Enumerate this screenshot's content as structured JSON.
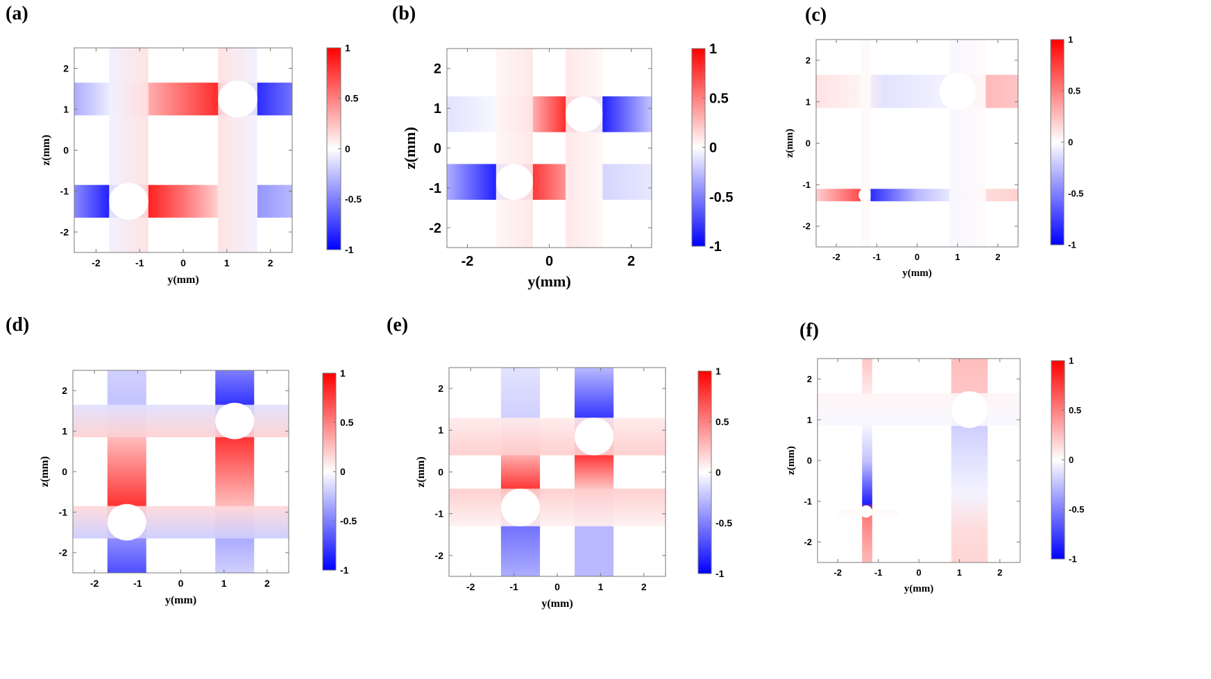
{
  "colors": {
    "pos": "#ff0000",
    "neg": "#0000ff",
    "mid": "#ffffff",
    "frame": "#777777"
  },
  "chart_data": [
    {
      "type": "heatmap",
      "panel_label": "(a)",
      "xlabel": "y(mm)",
      "ylabel": "z(mm)",
      "xlim": [
        -2.5,
        2.5
      ],
      "ylim": [
        -2.5,
        2.5
      ],
      "xticks": [
        "-2",
        "-1",
        "0",
        "1",
        "2"
      ],
      "yticks": [
        "2",
        "1",
        "0",
        "-1",
        "-2"
      ],
      "colorbar": {
        "range": [
          -1,
          1
        ],
        "ticks": [
          "1",
          "0.5",
          "0",
          "-0.5",
          "-1"
        ]
      },
      "holes": [
        {
          "y": 1.25,
          "z": 1.25,
          "r": 0.45
        },
        {
          "y": -1.25,
          "z": -1.25,
          "r": 0.45
        }
      ],
      "bands": [
        {
          "o": "h",
          "lo": 0.85,
          "hi": 1.65,
          "from": -2.5,
          "to": 2.5,
          "stops": [
            [
              -2.5,
              -0.35
            ],
            [
              -1.6,
              -0.05
            ],
            [
              -0.8,
              0.35
            ],
            [
              0.8,
              0.9
            ],
            [
              1.7,
              -0.9
            ],
            [
              2.5,
              -0.6
            ]
          ]
        },
        {
          "o": "h",
          "lo": -1.65,
          "hi": -0.85,
          "from": -2.5,
          "to": 0.8,
          "stops": [
            [
              -2.5,
              -0.5
            ],
            [
              -1.7,
              -0.95
            ],
            [
              -0.8,
              0.95
            ],
            [
              0.0,
              0.6
            ],
            [
              0.8,
              0.2
            ]
          ]
        },
        {
          "o": "h",
          "lo": -1.65,
          "hi": -0.85,
          "from": 1.7,
          "to": 2.5,
          "stops": [
            [
              1.7,
              -0.45
            ],
            [
              2.5,
              -0.3
            ]
          ]
        },
        {
          "o": "v",
          "lo": -1.7,
          "hi": -0.8,
          "from": -2.5,
          "to": 2.5,
          "stops": [
            [
              -1.7,
              -0.06
            ],
            [
              -0.8,
              0.12
            ]
          ]
        },
        {
          "o": "v",
          "lo": 0.8,
          "hi": 1.7,
          "from": -2.5,
          "to": 2.5,
          "stops": [
            [
              0.8,
              0.12
            ],
            [
              1.7,
              -0.06
            ]
          ]
        }
      ]
    },
    {
      "type": "heatmap",
      "panel_label": "(b)",
      "xlabel": "y(mm)",
      "ylabel": "z(mm)",
      "xlim": [
        -2.5,
        2.5
      ],
      "ylim": [
        -2.5,
        2.5
      ],
      "xticks": [
        "-2",
        "0",
        "2"
      ],
      "yticks": [
        "2",
        "1",
        "0",
        "-1",
        "-2"
      ],
      "colorbar": {
        "range": [
          -1,
          1
        ],
        "ticks": [
          "1",
          "0.5",
          "0",
          "-0.5",
          "-1"
        ]
      },
      "holes": [
        {
          "y": 0.85,
          "z": 0.85,
          "r": 0.45
        },
        {
          "y": -0.85,
          "z": -0.85,
          "r": 0.45
        }
      ],
      "bands": [
        {
          "o": "h",
          "lo": 0.4,
          "hi": 1.3,
          "from": -2.5,
          "to": 2.5,
          "stops": [
            [
              -2.5,
              -0.12
            ],
            [
              -1.3,
              -0.03
            ],
            [
              -0.4,
              0.35
            ],
            [
              0.4,
              0.9
            ],
            [
              1.3,
              -0.95
            ],
            [
              2.5,
              -0.25
            ]
          ]
        },
        {
          "o": "h",
          "lo": -1.3,
          "hi": -0.4,
          "from": -2.5,
          "to": 0.4,
          "stops": [
            [
              -2.5,
              -0.35
            ],
            [
              -1.3,
              -0.95
            ],
            [
              -0.4,
              0.85
            ],
            [
              0.4,
              0.45
            ]
          ]
        },
        {
          "o": "h",
          "lo": -1.3,
          "hi": -0.4,
          "from": 1.3,
          "to": 2.5,
          "stops": [
            [
              1.3,
              -0.18
            ],
            [
              2.5,
              -0.1
            ]
          ]
        },
        {
          "o": "v",
          "lo": -1.3,
          "hi": -0.4,
          "from": -2.5,
          "to": 2.5,
          "stops": [
            [
              -1.3,
              0.04
            ],
            [
              -0.4,
              0.1
            ]
          ]
        },
        {
          "o": "v",
          "lo": 0.4,
          "hi": 1.3,
          "from": -2.5,
          "to": 2.5,
          "stops": [
            [
              0.4,
              0.1
            ],
            [
              1.3,
              0.03
            ]
          ]
        }
      ]
    },
    {
      "type": "heatmap",
      "panel_label": "(c)",
      "xlabel": "y(mm)",
      "ylabel": "z(mm)",
      "xlim": [
        -2.5,
        2.5
      ],
      "ylim": [
        -2.5,
        2.5
      ],
      "xticks": [
        "-2",
        "-1",
        "0",
        "1",
        "2"
      ],
      "yticks": [
        "2",
        "1",
        "0",
        "-1",
        "-2"
      ],
      "colorbar": {
        "range": [
          -1,
          1
        ],
        "ticks": [
          "1",
          "0.5",
          "0",
          "-0.5",
          "-1"
        ]
      },
      "holes": [
        {
          "y": 1.0,
          "z": 1.25,
          "r": 0.45
        },
        {
          "y": -1.3,
          "z": -1.25,
          "r": 0.15
        }
      ],
      "bands": [
        {
          "o": "h",
          "lo": 0.85,
          "hi": 1.65,
          "from": -2.5,
          "to": 2.5,
          "stops": [
            [
              -2.5,
              0.12
            ],
            [
              -1.4,
              0.05
            ],
            [
              -0.8,
              -0.12
            ],
            [
              0.8,
              -0.05
            ],
            [
              1.6,
              0.3
            ],
            [
              2.5,
              0.25
            ]
          ]
        },
        {
          "o": "h",
          "lo": -1.4,
          "hi": -1.1,
          "from": -2.5,
          "to": 2.5,
          "stops": [
            [
              -2.5,
              0.2
            ],
            [
              -1.35,
              0.8
            ],
            [
              -1.25,
              -0.95
            ],
            [
              0.0,
              -0.3
            ],
            [
              0.8,
              -0.1
            ],
            [
              1.7,
              0.15
            ],
            [
              2.5,
              0.2
            ]
          ]
        },
        {
          "o": "v",
          "lo": -1.4,
          "hi": -1.15,
          "from": -2.5,
          "to": 2.5,
          "stops": [
            [
              -1.4,
              0.02
            ],
            [
              -1.15,
              0.02
            ]
          ]
        },
        {
          "o": "v",
          "lo": 0.8,
          "hi": 1.7,
          "from": -2.5,
          "to": 2.5,
          "stops": [
            [
              0.8,
              -0.03
            ],
            [
              1.7,
              0.02
            ]
          ]
        }
      ]
    },
    {
      "type": "heatmap",
      "panel_label": "(d)",
      "xlabel": "y(mm)",
      "ylabel": "z(mm)",
      "xlim": [
        -2.5,
        2.5
      ],
      "ylim": [
        -2.5,
        2.5
      ],
      "xticks": [
        "-2",
        "-1",
        "0",
        "1",
        "2"
      ],
      "yticks": [
        "2",
        "1",
        "0",
        "-1",
        "-2"
      ],
      "colorbar": {
        "range": [
          -1,
          1
        ],
        "ticks": [
          "1",
          "0.5",
          "0",
          "-0.5",
          "-1"
        ]
      },
      "holes": [
        {
          "y": 1.25,
          "z": 1.25,
          "r": 0.45
        },
        {
          "y": -1.25,
          "z": -1.25,
          "r": 0.45
        }
      ],
      "bands": [
        {
          "o": "v",
          "lo": -1.7,
          "hi": -0.8,
          "from": -2.5,
          "to": 2.5,
          "stops": [
            [
              -2.5,
              -0.75
            ],
            [
              -1.7,
              -0.5
            ],
            [
              -0.8,
              0.85
            ],
            [
              0.8,
              0.3
            ],
            [
              1.7,
              -0.25
            ],
            [
              2.5,
              -0.2
            ]
          ]
        },
        {
          "o": "v",
          "lo": 0.8,
          "hi": 1.7,
          "from": -2.5,
          "to": 2.5,
          "stops": [
            [
              -2.5,
              -0.2
            ],
            [
              -1.7,
              -0.35
            ],
            [
              -0.8,
              0.3
            ],
            [
              0.8,
              0.85
            ],
            [
              1.7,
              -0.85
            ],
            [
              2.5,
              -0.55
            ]
          ]
        },
        {
          "o": "h",
          "lo": 0.85,
          "hi": 1.65,
          "from": -2.5,
          "to": 2.5,
          "stops": [
            [
              0.85,
              0.18
            ],
            [
              1.65,
              -0.12
            ]
          ]
        },
        {
          "o": "h",
          "lo": -1.65,
          "hi": -0.85,
          "from": -2.5,
          "to": 2.5,
          "stops": [
            [
              -1.65,
              -0.2
            ],
            [
              -0.85,
              0.15
            ]
          ]
        }
      ]
    },
    {
      "type": "heatmap",
      "panel_label": "(e)",
      "xlabel": "y(mm)",
      "ylabel": "z(mm)",
      "xlim": [
        -2.5,
        2.5
      ],
      "ylim": [
        -2.5,
        2.5
      ],
      "xticks": [
        "-2",
        "-1",
        "0",
        "1",
        "2"
      ],
      "yticks": [
        "2",
        "1",
        "0",
        "-1",
        "-2"
      ],
      "colorbar": {
        "range": [
          -1,
          1
        ],
        "ticks": [
          "1",
          "0.5",
          "0",
          "-0.5",
          "-1"
        ]
      },
      "holes": [
        {
          "y": 0.85,
          "z": 0.85,
          "r": 0.45
        },
        {
          "y": -0.85,
          "z": -0.85,
          "r": 0.45
        }
      ],
      "bands": [
        {
          "o": "v",
          "lo": -1.3,
          "hi": -0.4,
          "from": -2.5,
          "to": 2.5,
          "stops": [
            [
              -2.5,
              -0.35
            ],
            [
              -1.3,
              -0.6
            ],
            [
              -0.4,
              0.85
            ],
            [
              0.4,
              0.35
            ],
            [
              1.3,
              -0.2
            ],
            [
              2.5,
              -0.12
            ]
          ]
        },
        {
          "o": "v",
          "lo": 0.4,
          "hi": 1.3,
          "from": -2.5,
          "to": 2.5,
          "stops": [
            [
              -2.5,
              -0.3
            ],
            [
              -1.3,
              -0.3
            ],
            [
              -0.4,
              0.25
            ],
            [
              0.4,
              0.85
            ],
            [
              1.3,
              -0.85
            ],
            [
              2.5,
              -0.3
            ]
          ]
        },
        {
          "o": "h",
          "lo": 0.4,
          "hi": 1.3,
          "from": -2.5,
          "to": 2.5,
          "stops": [
            [
              0.4,
              0.2
            ],
            [
              1.3,
              0.08
            ]
          ]
        },
        {
          "o": "h",
          "lo": -1.3,
          "hi": -0.4,
          "from": -2.5,
          "to": 2.5,
          "stops": [
            [
              -1.3,
              0.06
            ],
            [
              -0.4,
              0.2
            ]
          ]
        }
      ]
    },
    {
      "type": "heatmap",
      "panel_label": "(f)",
      "xlabel": "y(mm)",
      "ylabel": "z(mm)",
      "xlim": [
        -2.5,
        2.5
      ],
      "ylim": [
        -2.5,
        2.5
      ],
      "xticks": [
        "-2",
        "-1",
        "0",
        "1",
        "2"
      ],
      "yticks": [
        "2",
        "1",
        "0",
        "-1",
        "-2"
      ],
      "colorbar": {
        "range": [
          -1,
          1
        ],
        "ticks": [
          "1",
          "0.5",
          "0",
          "-0.5",
          "-1"
        ]
      },
      "holes": [
        {
          "y": 1.25,
          "z": 1.25,
          "r": 0.45
        },
        {
          "y": -1.3,
          "z": -1.25,
          "r": 0.15
        }
      ],
      "bands": [
        {
          "o": "v",
          "lo": -1.4,
          "hi": -1.15,
          "from": -2.5,
          "to": 2.5,
          "stops": [
            [
              -2.5,
              0.3
            ],
            [
              -1.4,
              0.55
            ],
            [
              -1.2,
              0.9
            ],
            [
              -1.05,
              -0.95
            ],
            [
              0.0,
              -0.25
            ],
            [
              0.8,
              -0.05
            ],
            [
              1.7,
              0.1
            ],
            [
              2.5,
              0.25
            ]
          ]
        },
        {
          "o": "v",
          "lo": 0.8,
          "hi": 1.7,
          "from": -2.5,
          "to": 2.5,
          "stops": [
            [
              -2.5,
              0.18
            ],
            [
              -1.7,
              0.15
            ],
            [
              -0.8,
              -0.05
            ],
            [
              0.8,
              -0.2
            ],
            [
              1.7,
              0.25
            ],
            [
              2.5,
              0.28
            ]
          ]
        },
        {
          "o": "h",
          "lo": 0.85,
          "hi": 1.65,
          "from": -2.5,
          "to": 2.5,
          "stops": [
            [
              0.85,
              -0.03
            ],
            [
              1.65,
              0.04
            ]
          ]
        },
        {
          "o": "h",
          "lo": -1.35,
          "hi": -1.2,
          "from": -2.0,
          "to": -0.5,
          "stops": [
            [
              -1.35,
              0.02
            ],
            [
              -1.2,
              0.02
            ]
          ]
        }
      ]
    }
  ]
}
